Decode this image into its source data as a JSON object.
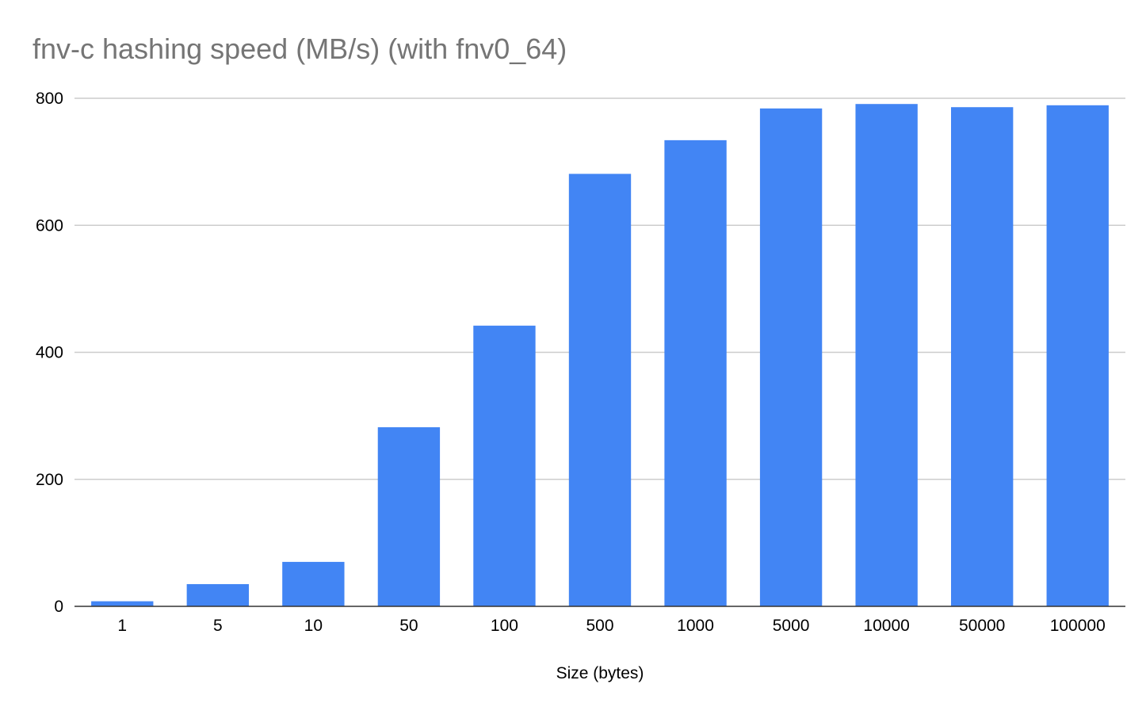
{
  "chart_data": {
    "type": "bar",
    "title": "fnv-c hashing speed (MB/s) (with fnv0_64)",
    "xlabel": "Size (bytes)",
    "ylabel": "",
    "categories": [
      "1",
      "5",
      "10",
      "50",
      "100",
      "500",
      "1000",
      "5000",
      "10000",
      "50000",
      "100000"
    ],
    "values": [
      8,
      35,
      70,
      282,
      442,
      681,
      734,
      784,
      791,
      786,
      789
    ],
    "ylim": [
      0,
      800
    ],
    "yticks": [
      0,
      200,
      400,
      600,
      800
    ],
    "grid": true,
    "legend": "none",
    "colors": {
      "bar": "#4285f4",
      "title": "#757575",
      "grid": "#cccccc",
      "axis": "#333333",
      "text": "#000000"
    }
  }
}
